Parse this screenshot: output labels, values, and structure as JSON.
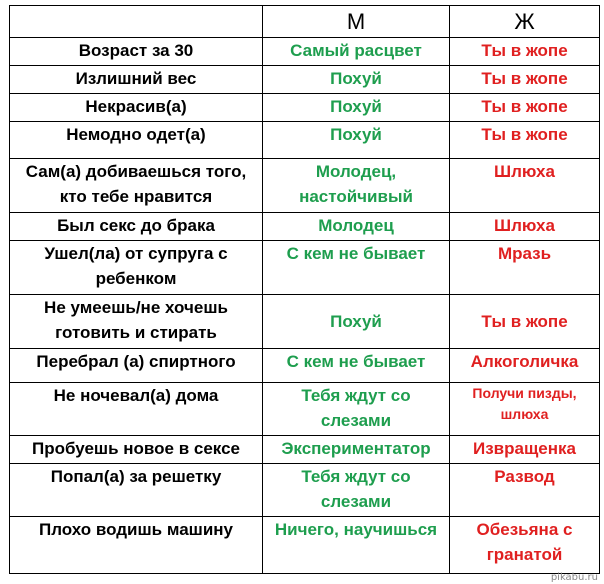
{
  "header": {
    "q": "",
    "m": "М",
    "f": "Ж"
  },
  "rows": [
    {
      "q": "Возраст за 30",
      "m": "Самый расцвет",
      "f": "Ты в жопе"
    },
    {
      "q": "Излишний вес",
      "m": "Похуй",
      "f": "Ты в жопе"
    },
    {
      "q": "Некрасив(а)",
      "m": "Похуй",
      "f": "Ты в жопе"
    },
    {
      "q": "Немодно одет(а)",
      "m": "Похуй",
      "f": "Ты в жопе"
    },
    {
      "q": "Сам(а) добиваешься того, кто тебе нравится",
      "m": "Молодец, настойчивый",
      "f": "Шлюха"
    },
    {
      "q": "Был секс до брака",
      "m": "Молодец",
      "f": "Шлюха"
    },
    {
      "q": "Ушел(ла)  от супруга с ребенком",
      "m": "С кем не бывает",
      "f": "Мразь"
    },
    {
      "q": "Не умеешь/не хочешь готовить и стирать",
      "m": "Похуй",
      "f": "Ты в жопе"
    },
    {
      "q": "Перебрал (а) спиртного",
      "m": "С кем не бывает",
      "f": "Алкоголичка"
    },
    {
      "q": "Не ночевал(а) дома",
      "m": "Тебя ждут со слезами",
      "f": "Получи пизды, шлюха"
    },
    {
      "q": "Пробуешь новое в сексе",
      "m": "Экспериментатор",
      "f": "Извращенка"
    },
    {
      "q": "Попал(а) за решетку",
      "m": "Тебя ждут со слезами",
      "f": "Развод"
    },
    {
      "q": "Плохо водишь машину",
      "m": "Ничего, научишься",
      "f": "Обезьяна с гранатой"
    }
  ],
  "watermark": "pikabu.ru",
  "colors": {
    "m": "#1e9e4e",
    "f": "#e02020",
    "q": "#000000"
  }
}
